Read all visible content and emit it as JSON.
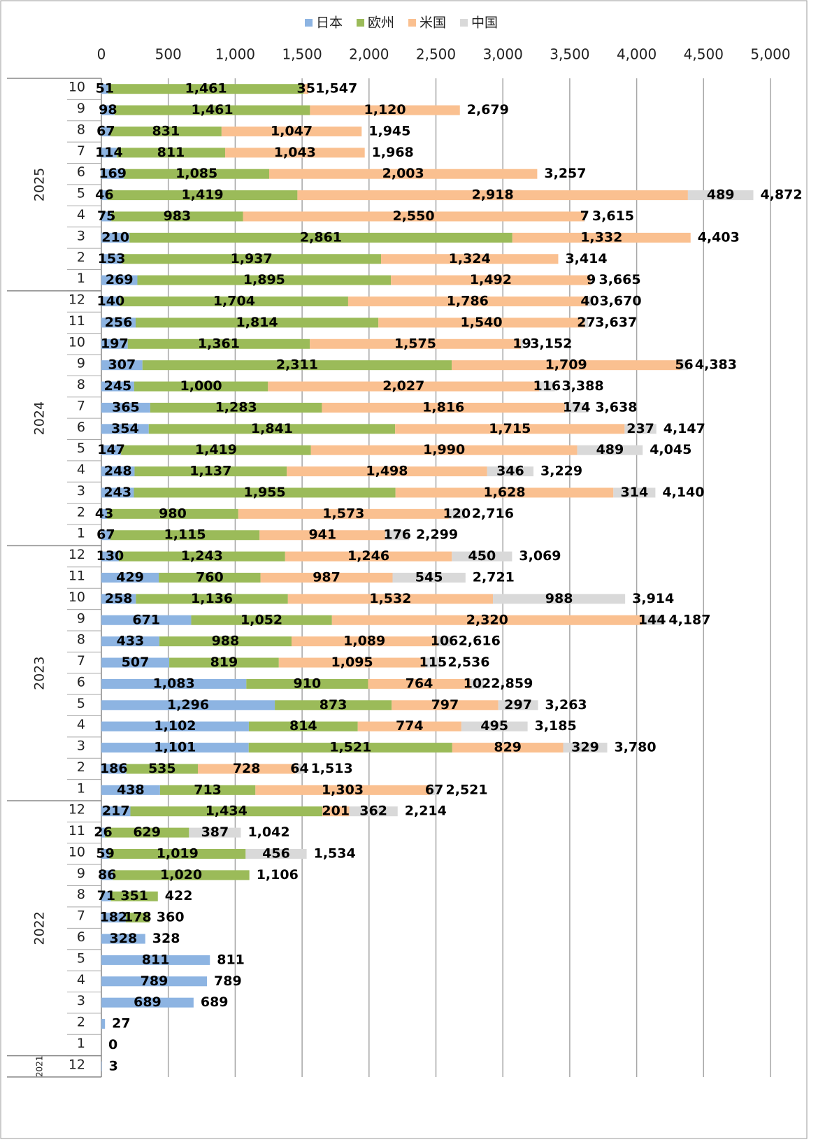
{
  "chart_data": {
    "type": "stacked-bar-horizontal",
    "groups": [
      {
        "name": "2025",
        "categories": [
          "10",
          "9",
          "8",
          "7",
          "6",
          "5",
          "4",
          "3",
          "2",
          "1"
        ]
      },
      {
        "name": "2024",
        "categories": [
          "12",
          "11",
          "10",
          "9",
          "8",
          "7",
          "6",
          "5",
          "4",
          "3",
          "2",
          "1"
        ]
      },
      {
        "name": "2023",
        "categories": [
          "12",
          "11",
          "10",
          "9",
          "8",
          "7",
          "6",
          "5",
          "4",
          "3",
          "2",
          "1"
        ]
      },
      {
        "name": "2022",
        "categories": [
          "12",
          "11",
          "10",
          "9",
          "8",
          "7",
          "6",
          "5",
          "4",
          "3",
          "2",
          "1"
        ]
      },
      {
        "name": "2021",
        "categories": [
          "12"
        ]
      }
    ],
    "series": [
      {
        "name": "日本",
        "color": "#8db4e2",
        "values": [
          51,
          98,
          67,
          114,
          169,
          46,
          75,
          210,
          153,
          269,
          140,
          256,
          197,
          307,
          245,
          365,
          354,
          147,
          248,
          243,
          43,
          67,
          130,
          429,
          258,
          671,
          433,
          507,
          1083,
          1296,
          1102,
          1101,
          186,
          438,
          217,
          26,
          59,
          86,
          71,
          182,
          328,
          811,
          789,
          689,
          27,
          0,
          3
        ],
        "value_labels": [
          "51",
          "98",
          "67",
          "114",
          "169",
          "46",
          "75",
          "210",
          "153",
          "269",
          "140",
          "256",
          "197",
          "307",
          "245",
          "365",
          "354",
          "147",
          "248",
          "243",
          "43",
          "67",
          "130",
          "429",
          "258",
          "671",
          "433",
          "507",
          "1,083",
          "1,296",
          "1,102",
          "1,101",
          "186",
          "438",
          "217",
          "26",
          "59",
          "86",
          "71",
          "182",
          "328",
          "811",
          "789",
          "689",
          null,
          null,
          null
        ]
      },
      {
        "name": "欧州",
        "color": "#9bbb59",
        "values": [
          1461,
          1461,
          831,
          811,
          1085,
          1419,
          983,
          2861,
          1937,
          1895,
          1704,
          1814,
          1361,
          2311,
          1000,
          1283,
          1841,
          1419,
          1137,
          1955,
          980,
          1115,
          1243,
          760,
          1136,
          1052,
          988,
          819,
          910,
          873,
          814,
          1521,
          535,
          713,
          1434,
          629,
          1019,
          1020,
          351,
          178,
          null,
          null,
          null,
          null,
          null,
          null,
          null
        ],
        "value_labels": [
          "1,461",
          "1,461",
          "831",
          "811",
          "1,085",
          "1,419",
          "983",
          "2,861",
          "1,937",
          "1,895",
          "1,704",
          "1,814",
          "1,361",
          "2,311",
          "1,000",
          "1,283",
          "1,841",
          "1,419",
          "1,137",
          "1,955",
          "980",
          "1,115",
          "1,243",
          "760",
          "1,136",
          "1,052",
          "988",
          "819",
          "910",
          "873",
          "814",
          "1,521",
          "535",
          "713",
          "1,434",
          "629",
          "1,019",
          "1,020",
          "351",
          "178",
          null,
          null,
          null,
          null,
          null,
          null,
          null
        ]
      },
      {
        "name": "米国",
        "color": "#fac090",
        "values": [
          35,
          1120,
          1047,
          1043,
          2003,
          2918,
          2550,
          1332,
          1324,
          1492,
          1786,
          1540,
          1575,
          1709,
          2027,
          1816,
          1715,
          1990,
          1498,
          1628,
          1573,
          941,
          1246,
          987,
          1532,
          2320,
          1089,
          1095,
          764,
          797,
          774,
          829,
          728,
          1303,
          201,
          null,
          null,
          null,
          null,
          null,
          null,
          null,
          null,
          null,
          null,
          null,
          null
        ],
        "value_labels": [
          "35",
          "1,120",
          "1,047",
          "1,043",
          "2,003",
          "2,918",
          "2,550",
          "1,332",
          "1,324",
          "1,492",
          "1,786",
          "1,540",
          "1,575",
          "1,709",
          "2,027",
          "1,816",
          "1,715",
          "1,990",
          "1,498",
          "1,628",
          "1,573",
          "941",
          "1,246",
          "987",
          "1,532",
          "2,320",
          "1,089",
          "1,095",
          "764",
          "797",
          "774",
          "829",
          "728",
          "1,303",
          "201",
          null,
          null,
          null,
          null,
          null,
          null,
          null,
          null,
          null,
          null,
          null,
          null
        ]
      },
      {
        "name": "中国",
        "color": "#d9d9d9",
        "values": [
          null,
          null,
          null,
          null,
          null,
          489,
          7,
          null,
          null,
          9,
          40,
          27,
          19,
          56,
          116,
          174,
          237,
          489,
          346,
          314,
          120,
          176,
          450,
          545,
          988,
          144,
          106,
          115,
          102,
          297,
          495,
          329,
          64,
          67,
          362,
          387,
          456,
          null,
          null,
          null,
          null,
          null,
          null,
          null,
          null,
          null,
          null
        ],
        "value_labels": [
          null,
          null,
          null,
          null,
          null,
          "489",
          "7",
          null,
          null,
          "9",
          "40",
          "27",
          "19",
          "56",
          "116",
          "174",
          "237",
          "489",
          "346",
          "314",
          "120",
          "176",
          "450",
          "545",
          "988",
          "144",
          "106",
          "115",
          "102",
          "297",
          "495",
          "329",
          "64",
          "67",
          "362",
          "387",
          "456",
          null,
          null,
          null,
          null,
          null,
          null,
          null,
          null,
          null,
          null
        ]
      }
    ],
    "totals": [
      1547,
      2679,
      1945,
      1968,
      3257,
      4872,
      3615,
      4403,
      3414,
      3665,
      3670,
      3637,
      3152,
      4383,
      3388,
      3638,
      4147,
      4045,
      3229,
      4140,
      2716,
      2299,
      3069,
      2721,
      3914,
      4187,
      2616,
      2536,
      2859,
      3263,
      3185,
      3780,
      1513,
      2521,
      2214,
      1042,
      1534,
      1106,
      422,
      360,
      328,
      811,
      789,
      689,
      27,
      0,
      3
    ],
    "total_labels": [
      "1,547",
      "2,679",
      "1,945",
      "1,968",
      "3,257",
      "4,872",
      "3,615",
      "4,403",
      "3,414",
      "3,665",
      "3,670",
      "3,637",
      "3,152",
      "4,383",
      "3,388",
      "3,638",
      "4,147",
      "4,045",
      "3,229",
      "4,140",
      "2,716",
      "2,299",
      "3,069",
      "2,721",
      "3,914",
      "4,187",
      "2,616",
      "2,536",
      "2,859",
      "3,263",
      "3,185",
      "3,780",
      "1,513",
      "2,521",
      "2,214",
      "1,042",
      "1,534",
      "1,106",
      "422",
      "360",
      "328",
      "811",
      "789",
      "689",
      "27",
      "0",
      "3"
    ],
    "xlim": [
      0,
      5000
    ],
    "xticks": [
      0,
      500,
      {
        "value": 1000,
        "label": "1,000"
      },
      {
        "value": 1500,
        "label": "1,500"
      },
      {
        "value": 2000,
        "label": "2,000"
      },
      {
        "value": 2500,
        "label": "2,500"
      },
      {
        "value": 3000,
        "label": "3,000"
      },
      {
        "value": 3500,
        "label": "3,500"
      },
      {
        "value": 4000,
        "label": "4,000"
      },
      {
        "value": 4500,
        "label": "4,500"
      },
      {
        "value": 5000,
        "label": "5,000"
      }
    ],
    "grid": true,
    "legend": "top"
  }
}
